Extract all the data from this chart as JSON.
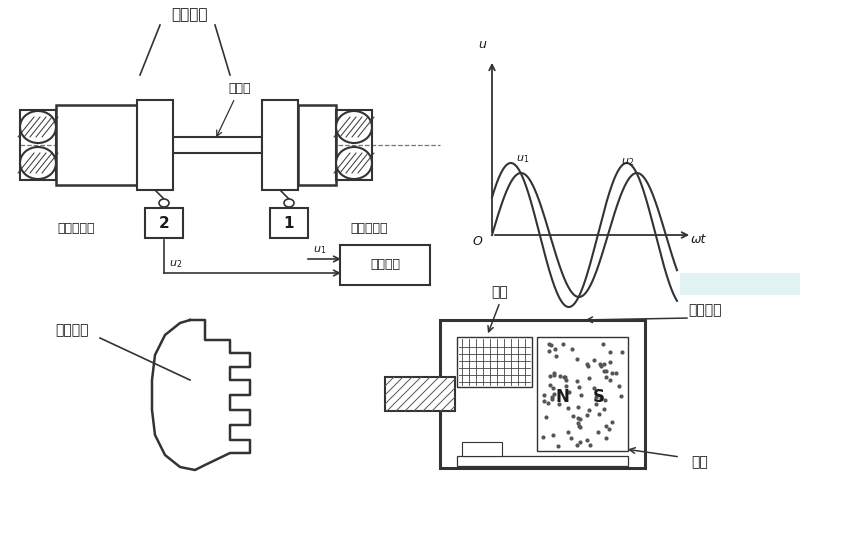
{
  "bg_color": "#ffffff",
  "text_color": "#1a1a1a",
  "line_color": "#333333",
  "label_chi_yaxing": "齿形圆盘",
  "label_niuzhuan": "扭转轴",
  "label_cidianchuangan_left": "磁电传感器",
  "label_cidianchuangan_right": "磁电传感器",
  "label_2": "2",
  "label_1": "1",
  "label_celiangyi": "测量仪表",
  "label_u_axis": "u",
  "label_omega_t": "ωt",
  "label_O": "O",
  "label_chi_lower": "齿形圆盘",
  "label_xianquan": "线圈",
  "label_yongjiu": "永久磁铁",
  "label_tiexi": "铁芯",
  "note_color": "#c5e8e8"
}
